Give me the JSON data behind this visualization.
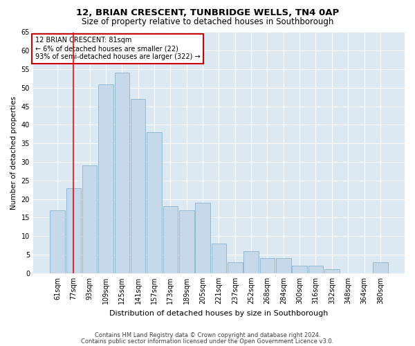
{
  "title": "12, BRIAN CRESCENT, TUNBRIDGE WELLS, TN4 0AP",
  "subtitle": "Size of property relative to detached houses in Southborough",
  "xlabel": "Distribution of detached houses by size in Southborough",
  "ylabel": "Number of detached properties",
  "footer1": "Contains HM Land Registry data © Crown copyright and database right 2024.",
  "footer2": "Contains public sector information licensed under the Open Government Licence v3.0.",
  "annotation_title": "12 BRIAN CRESCENT: 81sqm",
  "annotation_line1": "← 6% of detached houses are smaller (22)",
  "annotation_line2": "93% of semi-detached houses are larger (322) →",
  "categories": [
    "61sqm",
    "77sqm",
    "93sqm",
    "109sqm",
    "125sqm",
    "141sqm",
    "157sqm",
    "173sqm",
    "189sqm",
    "205sqm",
    "221sqm",
    "237sqm",
    "252sqm",
    "268sqm",
    "284sqm",
    "300sqm",
    "316sqm",
    "332sqm",
    "348sqm",
    "364sqm",
    "380sqm"
  ],
  "bar_heights": [
    17,
    23,
    29,
    51,
    54,
    47,
    38,
    18,
    17,
    19,
    8,
    3,
    6,
    4,
    4,
    2,
    2,
    1,
    0,
    0,
    3
  ],
  "bar_color": "#c6d9ea",
  "bar_edge_color": "#7aaac8",
  "red_line_x": 1,
  "ylim": [
    0,
    65
  ],
  "bg_color": "#dce8f2",
  "grid_color": "#ffffff",
  "annotation_box_color": "#ffffff",
  "annotation_box_edge": "#cc0000",
  "title_fontsize": 9.5,
  "subtitle_fontsize": 8.5,
  "ylabel_fontsize": 7.5,
  "xlabel_fontsize": 8.0,
  "tick_fontsize": 7.0,
  "annotation_fontsize": 7.0,
  "footer_fontsize": 6.0
}
